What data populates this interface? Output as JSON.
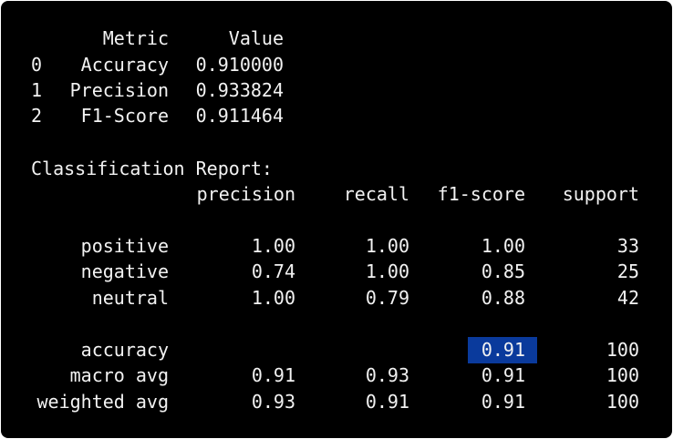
{
  "summary_table": {
    "headers": {
      "metric": "Metric",
      "value": "Value"
    },
    "rows": [
      {
        "index": "0",
        "metric": "Accuracy",
        "value": "0.910000"
      },
      {
        "index": "1",
        "metric": "Precision",
        "value": "0.933824"
      },
      {
        "index": "2",
        "metric": "F1-Score",
        "value": "0.911464"
      }
    ]
  },
  "report": {
    "title": "Classification Report:",
    "headers": {
      "precision": "precision",
      "recall": "recall",
      "f1": "f1-score",
      "support": "support"
    },
    "class_rows": [
      {
        "label": "positive",
        "precision": "1.00",
        "recall": "1.00",
        "f1": "1.00",
        "support": "33"
      },
      {
        "label": "negative",
        "precision": "0.74",
        "recall": "1.00",
        "f1": "0.85",
        "support": "25"
      },
      {
        "label": "neutral",
        "precision": "1.00",
        "recall": "0.79",
        "f1": "0.88",
        "support": "42"
      }
    ],
    "accuracy_row": {
      "label": "accuracy",
      "f1": "0.91",
      "support": "100"
    },
    "avg_rows": [
      {
        "label": "macro avg",
        "precision": "0.91",
        "recall": "0.93",
        "f1": "0.91",
        "support": "100"
      },
      {
        "label": "weighted avg",
        "precision": "0.93",
        "recall": "0.91",
        "f1": "0.91",
        "support": "100"
      }
    ]
  },
  "colors": {
    "background": "#000000",
    "text": "#f2f2f2",
    "selection": "#0a3a9c"
  }
}
